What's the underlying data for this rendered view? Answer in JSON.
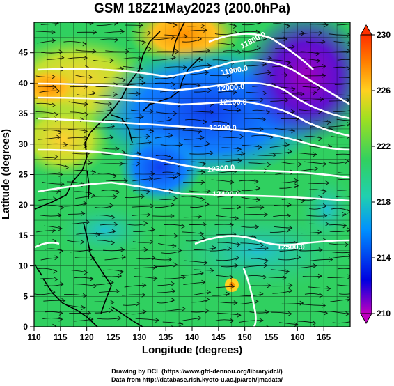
{
  "title": "GSM 18Z21May2023 (200.0hPa)",
  "x_axis": {
    "label": "Longitude (degrees)",
    "min": 110,
    "max": 170,
    "ticks": [
      110,
      115,
      120,
      125,
      130,
      135,
      140,
      145,
      150,
      155,
      160,
      165
    ]
  },
  "y_axis": {
    "label": "Latitude (degrees)",
    "min": 0,
    "max": 50,
    "ticks": [
      0,
      5,
      10,
      15,
      20,
      25,
      30,
      35,
      40,
      45
    ]
  },
  "colorbar": {
    "min": 210,
    "max": 230,
    "ticks": [
      210,
      214,
      218,
      222,
      226,
      230
    ],
    "colors": [
      "#c000c0",
      "#0000e0",
      "#0090ff",
      "#20d0b0",
      "#30d060",
      "#a0e020",
      "#ffd020",
      "#ff8000",
      "#ff3000"
    ]
  },
  "contours": [
    {
      "label": "11800.0"
    },
    {
      "label": "11900.0"
    },
    {
      "label": "12000.0"
    },
    {
      "label": "12100.0"
    },
    {
      "label": "12200.0"
    },
    {
      "label": "12300.0"
    },
    {
      "label": "12400.0"
    },
    {
      "label": "12500.0"
    }
  ],
  "credits": {
    "line1": "Drawing by DCL (https://www.gfd-dennou.org/library/dcl/)",
    "line2": "Data from http://database.rish.kyoto-u.ac.jp/arch/jmadata/"
  }
}
